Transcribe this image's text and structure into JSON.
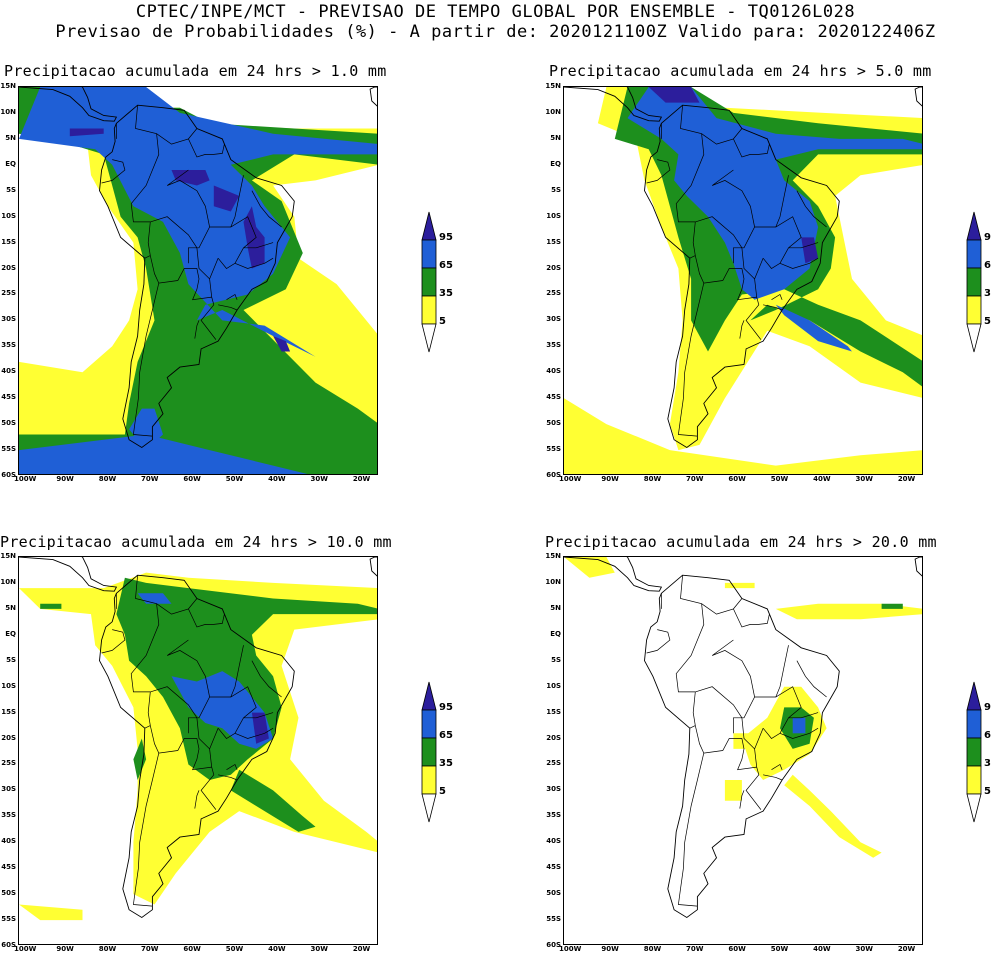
{
  "header": {
    "line1": "CPTEC/INPE/MCT - PREVISAO DE TEMPO GLOBAL POR ENSEMBLE - TQ0126L028",
    "line2": "Previsao de Probabilidades (%) -  A partir de: 2020121100Z  Valido para: 2020122406Z"
  },
  "axes": {
    "lat_labels": [
      "15N",
      "10N",
      "5N",
      "EQ",
      "5S",
      "10S",
      "15S",
      "20S",
      "25S",
      "30S",
      "35S",
      "40S",
      "45S",
      "50S",
      "55S",
      "60S"
    ],
    "lon_labels": [
      "100W",
      "90W",
      "80W",
      "70W",
      "60W",
      "50W",
      "40W",
      "30W",
      "20W"
    ]
  },
  "legend": {
    "levels": [
      "95",
      "65",
      "35",
      "5"
    ],
    "colors": {
      "c95": "#2c1e9c",
      "c65": "#1f5fd6",
      "c35": "#1d8f1d",
      "c5": "#ffff33"
    }
  },
  "panels": [
    {
      "title": "Precipitacao acumulada em 24 hrs > 1.0 mm"
    },
    {
      "title": "Precipitacao acumulada em 24 hrs > 5.0 mm"
    },
    {
      "title": "Precipitacao acumulada em 24 hrs > 10.0 mm"
    },
    {
      "title": "Precipitacao acumulada em 24 hrs > 20.0 mm"
    }
  ]
}
